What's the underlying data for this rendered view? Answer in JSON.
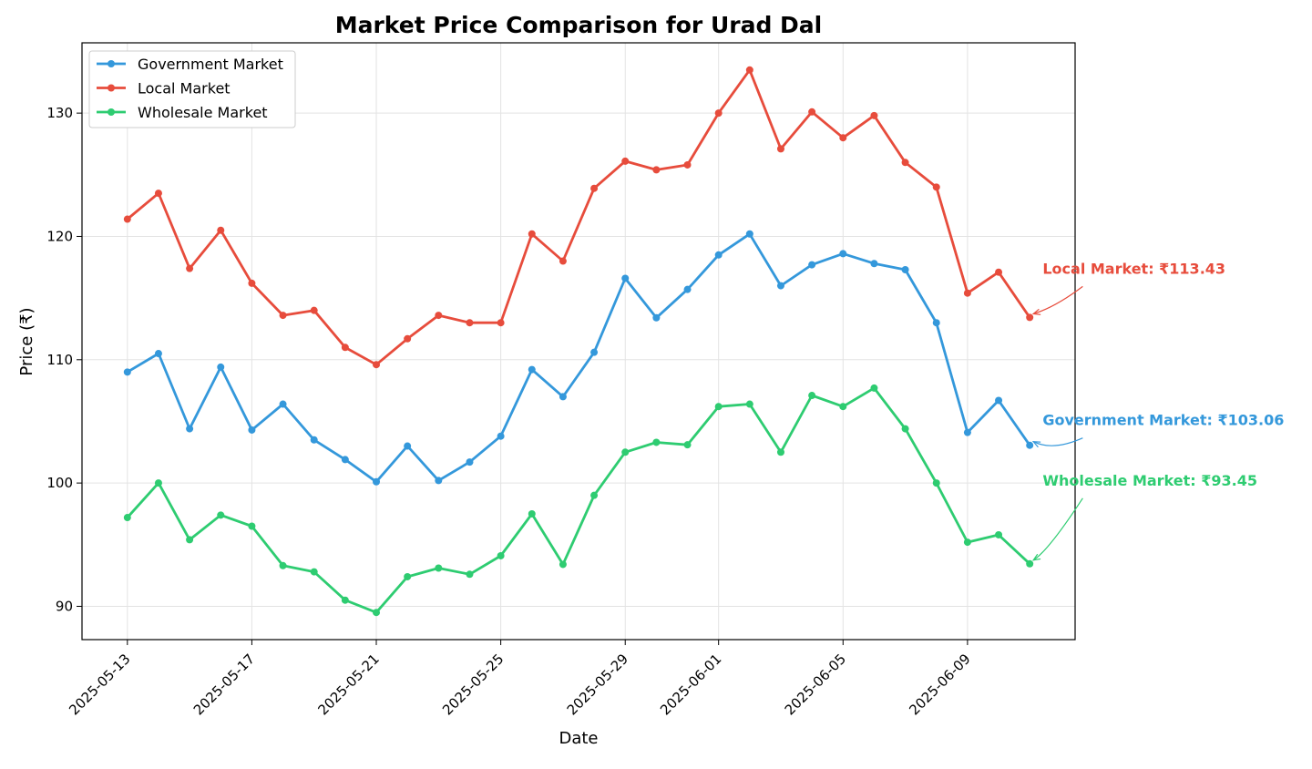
{
  "chart_data": {
    "type": "line",
    "title": "Market Price Comparison for Urad Dal",
    "xlabel": "Date",
    "ylabel": "Price (₹)",
    "x": [
      "2025-05-13",
      "2025-05-14",
      "2025-05-15",
      "2025-05-16",
      "2025-05-17",
      "2025-05-18",
      "2025-05-19",
      "2025-05-20",
      "2025-05-21",
      "2025-05-22",
      "2025-05-23",
      "2025-05-24",
      "2025-05-25",
      "2025-05-26",
      "2025-05-27",
      "2025-05-28",
      "2025-05-29",
      "2025-05-30",
      "2025-05-31",
      "2025-06-01",
      "2025-06-02",
      "2025-06-03",
      "2025-06-04",
      "2025-06-05",
      "2025-06-06",
      "2025-06-07",
      "2025-06-08",
      "2025-06-09",
      "2025-06-10",
      "2025-06-11"
    ],
    "xticks": [
      "2025-05-13",
      "2025-05-17",
      "2025-05-21",
      "2025-05-25",
      "2025-05-29",
      "2025-06-01",
      "2025-06-05",
      "2025-06-09"
    ],
    "yticks": [
      90,
      100,
      110,
      120,
      130
    ],
    "ylim": [
      87.3,
      135.7
    ],
    "xlim": [
      "2025-05-11T13:00",
      "2025-06-12T11:00"
    ],
    "grid": true,
    "legend": "top-left",
    "series": [
      {
        "name": "Government Market",
        "color": "#3498db",
        "values": [
          109.0,
          110.5,
          104.4,
          109.4,
          104.3,
          106.4,
          103.5,
          101.9,
          100.1,
          103.0,
          100.2,
          101.7,
          103.8,
          109.2,
          107.0,
          110.6,
          116.6,
          113.4,
          115.7,
          118.5,
          120.2,
          116.0,
          117.7,
          118.6,
          117.8,
          117.3,
          113.0,
          104.1,
          106.7,
          103.06
        ]
      },
      {
        "name": "Local Market",
        "color": "#e74c3c",
        "values": [
          121.4,
          123.5,
          117.4,
          120.5,
          116.2,
          113.6,
          114.0,
          111.0,
          109.6,
          111.7,
          113.6,
          113.0,
          113.0,
          120.2,
          118.0,
          123.9,
          126.1,
          125.4,
          125.8,
          130.0,
          133.5,
          127.1,
          130.1,
          128.0,
          129.8,
          126.0,
          124.0,
          115.4,
          117.1,
          113.43
        ]
      },
      {
        "name": "Wholesale Market",
        "color": "#2ecc71",
        "values": [
          97.2,
          100.0,
          95.4,
          97.4,
          96.5,
          93.3,
          92.8,
          90.5,
          89.5,
          92.4,
          93.1,
          92.6,
          94.1,
          97.5,
          93.4,
          99.0,
          102.5,
          103.3,
          103.1,
          106.2,
          106.4,
          102.5,
          107.1,
          106.2,
          107.7,
          104.4,
          100.0,
          95.2,
          95.8,
          93.45
        ]
      }
    ],
    "annotations": [
      {
        "text": "Local Market: ₹113.43",
        "color": "#e74c3c",
        "series": "Local Market"
      },
      {
        "text": "Government Market: ₹103.06",
        "color": "#3498db",
        "series": "Government Market"
      },
      {
        "text": "Wholesale Market: ₹93.45",
        "color": "#2ecc71",
        "series": "Wholesale Market"
      }
    ]
  }
}
